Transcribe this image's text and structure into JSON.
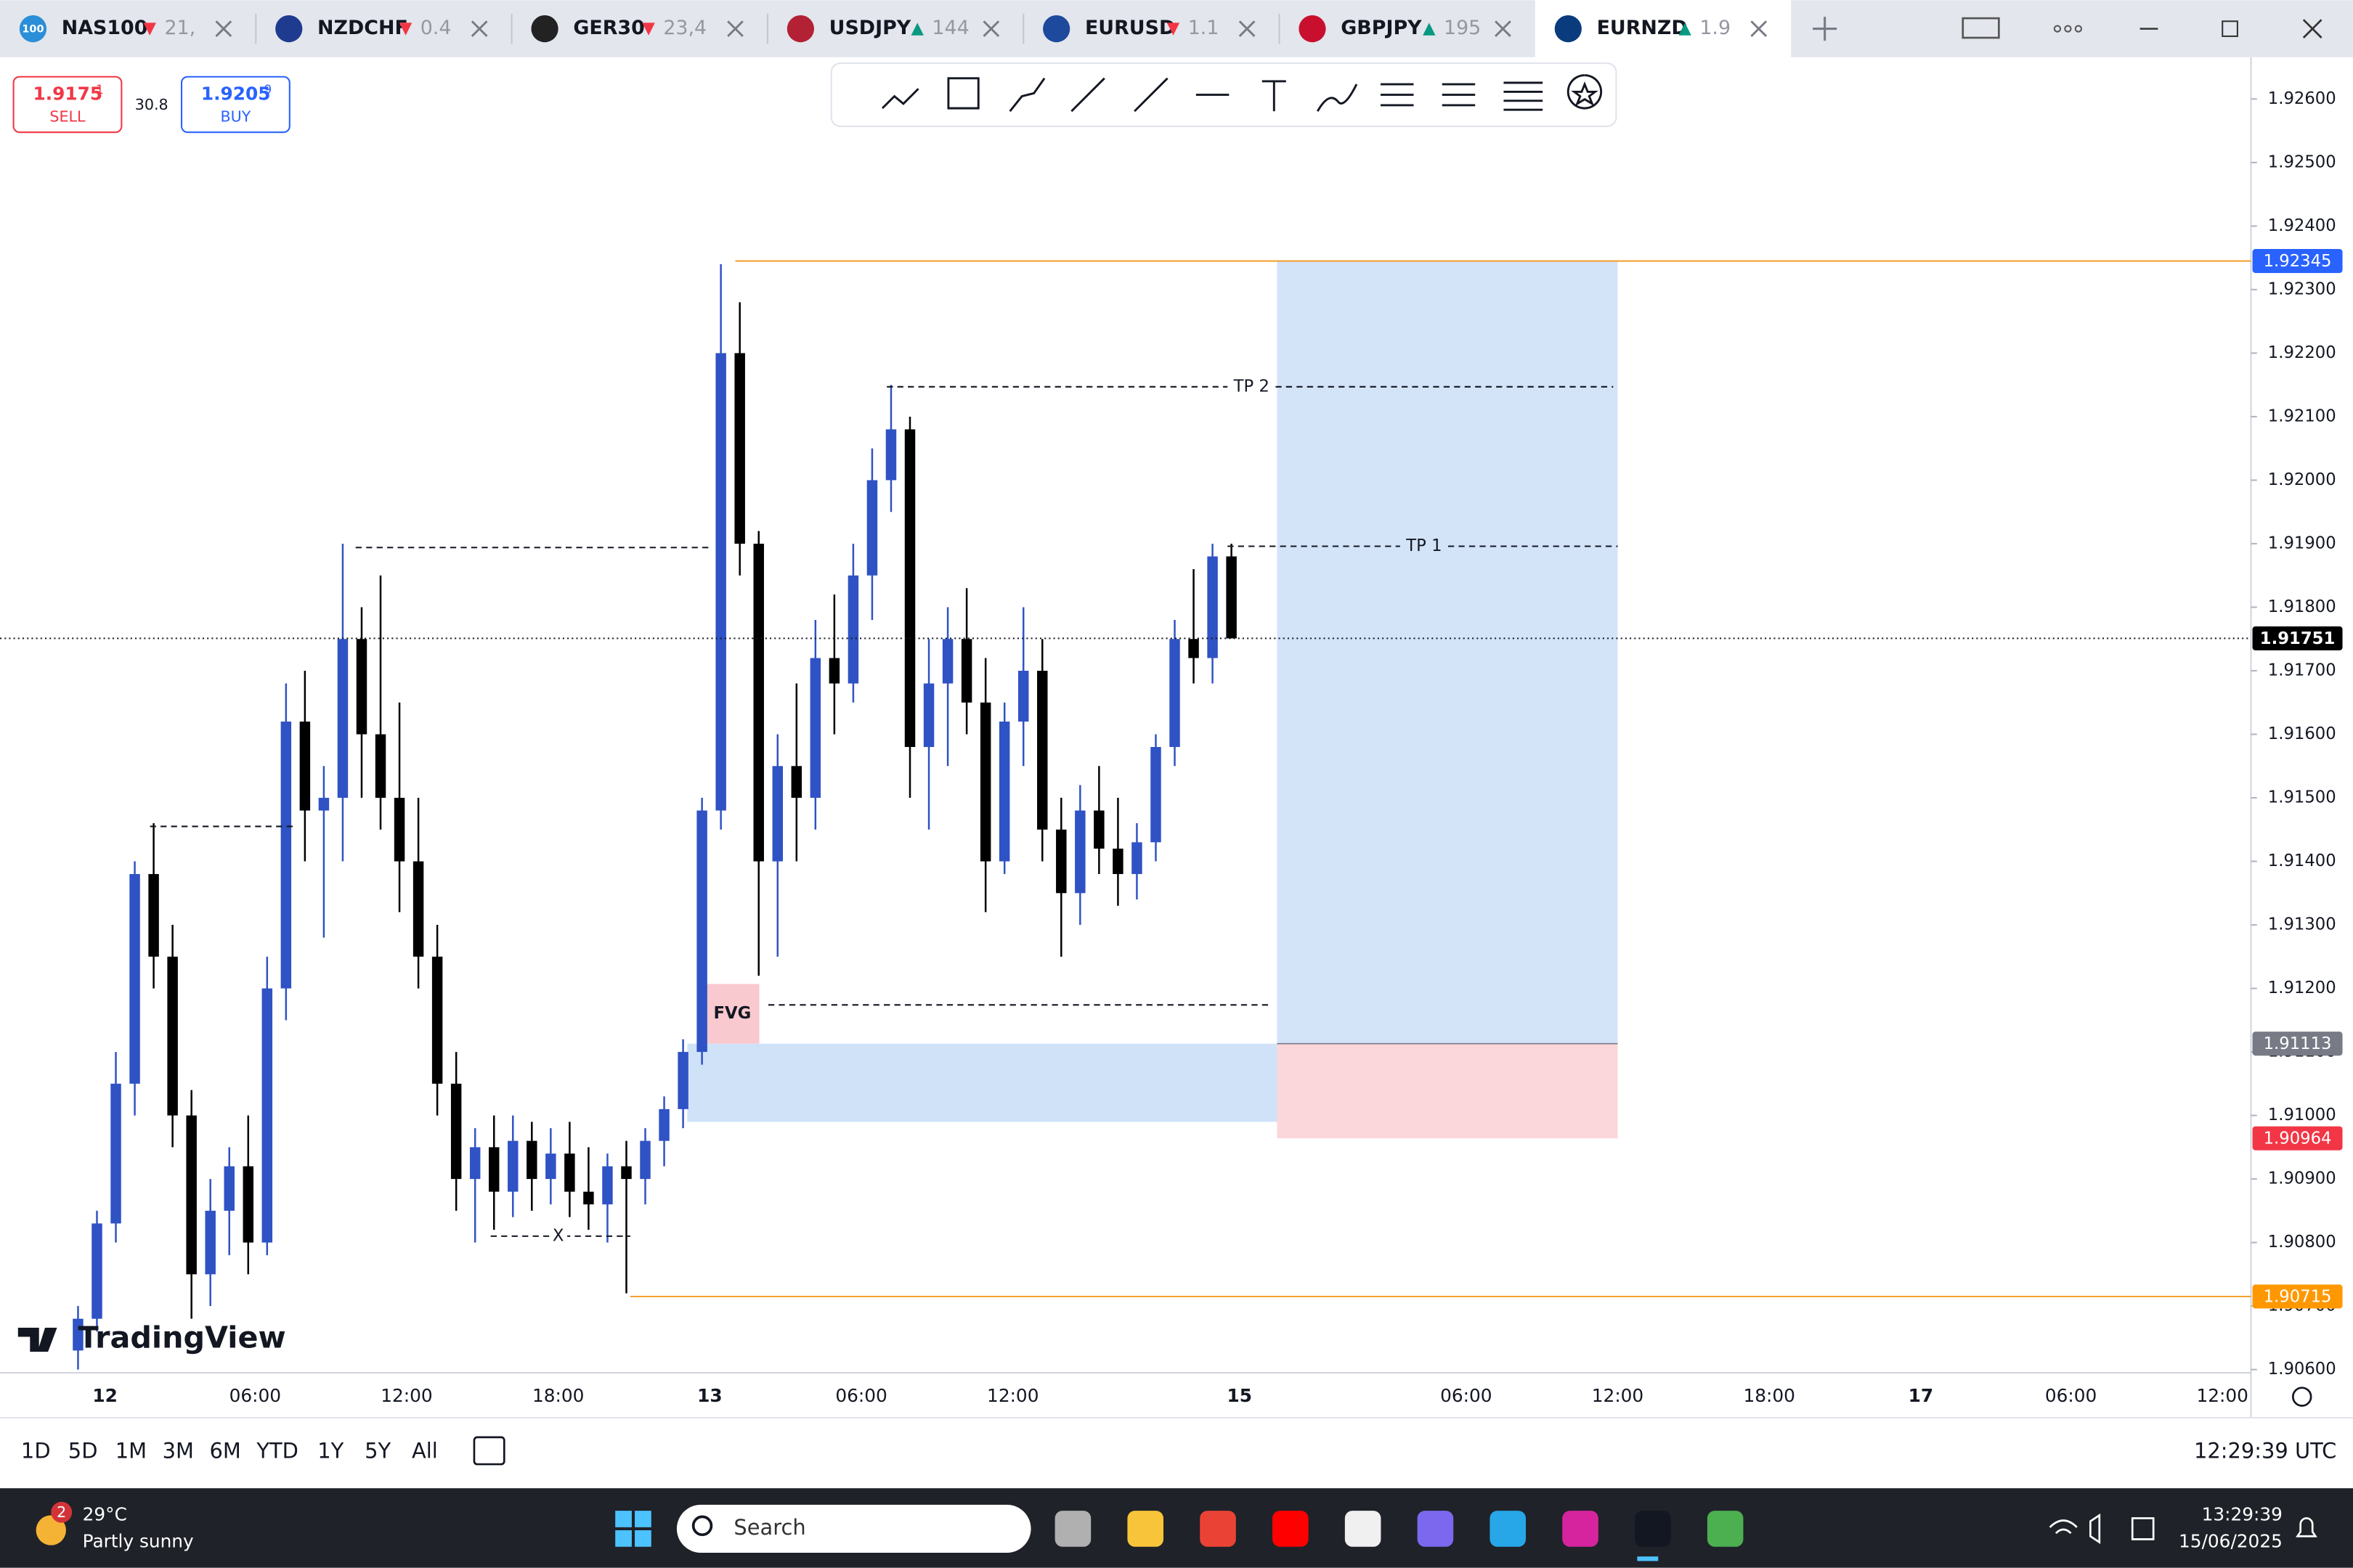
{
  "tabs": [
    {
      "symbol": "NAS100",
      "arrow": "▼",
      "price": "21,",
      "icon": "100"
    },
    {
      "symbol": "NZDCHF",
      "arrow": "▼",
      "price": "0.4"
    },
    {
      "symbol": "GER30",
      "arrow": "▼",
      "price": "23,4"
    },
    {
      "symbol": "USDJPY",
      "arrow": "▲",
      "price": "144"
    },
    {
      "symbol": "EURUSD",
      "arrow": "▼",
      "price": "1.1"
    },
    {
      "symbol": "GBPJPY",
      "arrow": "▲",
      "price": "195"
    },
    {
      "symbol": "EURNZD",
      "arrow": "▲",
      "price": "1.9"
    }
  ],
  "trade": {
    "sell_price": "1.9175",
    "sell_sup": "1",
    "sell_label": "SELL",
    "spread": "30.8",
    "buy_price": "1.9205",
    "buy_sup": "9",
    "buy_label": "BUY"
  },
  "chart": {
    "ylim": [
      1.90595,
      1.92661
    ],
    "yticks": [
      {
        "value": 1.926,
        "label": "1.92600"
      },
      {
        "value": 1.925,
        "label": "1.92500"
      },
      {
        "value": 1.924,
        "label": "1.92400"
      },
      {
        "value": 1.923,
        "label": "1.92300"
      },
      {
        "value": 1.922,
        "label": "1.92200"
      },
      {
        "value": 1.921,
        "label": "1.92100"
      },
      {
        "value": 1.92,
        "label": "1.92000"
      },
      {
        "value": 1.919,
        "label": "1.91900"
      },
      {
        "value": 1.918,
        "label": "1.91800"
      },
      {
        "value": 1.917,
        "label": "1.91700"
      },
      {
        "value": 1.916,
        "label": "1.91600"
      },
      {
        "value": 1.915,
        "label": "1.91500"
      },
      {
        "value": 1.914,
        "label": "1.91400"
      },
      {
        "value": 1.913,
        "label": "1.91300"
      },
      {
        "value": 1.912,
        "label": "1.91200"
      },
      {
        "value": 1.911,
        "label": "1.91100"
      },
      {
        "value": 1.91,
        "label": "1.91000"
      },
      {
        "value": 1.909,
        "label": "1.90900"
      },
      {
        "value": 1.908,
        "label": "1.90800"
      },
      {
        "value": 1.907,
        "label": "1.90700"
      },
      {
        "value": 1.906,
        "label": "1.90600"
      }
    ],
    "xticks": [
      "12",
      "06:00",
      "12:00",
      "18:00",
      "13",
      "06:00",
      "12:00",
      "15",
      "06:00",
      "12:00",
      "18:00",
      "17",
      "06:00",
      "12:00"
    ],
    "candles": [
      [
        1.9063,
        1.907,
        1.906,
        1.9068
      ],
      [
        1.9068,
        1.9085,
        1.9066,
        1.9083
      ],
      [
        1.9083,
        1.911,
        1.908,
        1.9105
      ],
      [
        1.9105,
        1.914,
        1.91,
        1.9138
      ],
      [
        1.9138,
        1.9146,
        1.912,
        1.9125
      ],
      [
        1.9125,
        1.913,
        1.9095,
        1.91
      ],
      [
        1.91,
        1.9104,
        1.9068,
        1.9075
      ],
      [
        1.9075,
        1.909,
        1.907,
        1.9085
      ],
      [
        1.9085,
        1.9095,
        1.9078,
        1.9092
      ],
      [
        1.9092,
        1.91,
        1.9075,
        1.908
      ],
      [
        1.908,
        1.9125,
        1.9078,
        1.912
      ],
      [
        1.912,
        1.9168,
        1.9115,
        1.9162
      ],
      [
        1.9162,
        1.917,
        1.914,
        1.9148
      ],
      [
        1.9148,
        1.9155,
        1.9128,
        1.915
      ],
      [
        1.915,
        1.919,
        1.914,
        1.9175
      ],
      [
        1.9175,
        1.918,
        1.915,
        1.916
      ],
      [
        1.916,
        1.9185,
        1.9145,
        1.915
      ],
      [
        1.915,
        1.9165,
        1.9132,
        1.914
      ],
      [
        1.914,
        1.915,
        1.912,
        1.9125
      ],
      [
        1.9125,
        1.913,
        1.91,
        1.9105
      ],
      [
        1.9105,
        1.911,
        1.9085,
        1.909
      ],
      [
        1.909,
        1.9098,
        1.908,
        1.9095
      ],
      [
        1.9095,
        1.91,
        1.9082,
        1.9088
      ],
      [
        1.9088,
        1.91,
        1.9084,
        1.9096
      ],
      [
        1.9096,
        1.9099,
        1.9085,
        1.909
      ],
      [
        1.909,
        1.9098,
        1.9086,
        1.9094
      ],
      [
        1.9094,
        1.9099,
        1.9084,
        1.9088
      ],
      [
        1.9088,
        1.9095,
        1.9082,
        1.9086
      ],
      [
        1.9086,
        1.9094,
        1.908,
        1.9092
      ],
      [
        1.9092,
        1.9096,
        1.9072,
        1.909
      ],
      [
        1.909,
        1.9098,
        1.9086,
        1.9096
      ],
      [
        1.9096,
        1.9103,
        1.9092,
        1.9101
      ],
      [
        1.9101,
        1.9112,
        1.9098,
        1.911
      ],
      [
        1.911,
        1.915,
        1.9108,
        1.9148
      ],
      [
        1.9148,
        1.9234,
        1.9145,
        1.922
      ],
      [
        1.922,
        1.9228,
        1.9185,
        1.919
      ],
      [
        1.919,
        1.9192,
        1.9122,
        1.914
      ],
      [
        1.914,
        1.916,
        1.9125,
        1.9155
      ],
      [
        1.9155,
        1.9168,
        1.914,
        1.915
      ],
      [
        1.915,
        1.9178,
        1.9145,
        1.9172
      ],
      [
        1.9172,
        1.9182,
        1.916,
        1.9168
      ],
      [
        1.9168,
        1.919,
        1.9165,
        1.9185
      ],
      [
        1.9185,
        1.9205,
        1.9178,
        1.92
      ],
      [
        1.92,
        1.9215,
        1.9195,
        1.9208
      ],
      [
        1.9208,
        1.921,
        1.915,
        1.9158
      ],
      [
        1.9158,
        1.9175,
        1.9145,
        1.9168
      ],
      [
        1.9168,
        1.918,
        1.9155,
        1.9175
      ],
      [
        1.9175,
        1.9183,
        1.916,
        1.9165
      ],
      [
        1.9165,
        1.9172,
        1.9132,
        1.914
      ],
      [
        1.914,
        1.9165,
        1.9138,
        1.9162
      ],
      [
        1.9162,
        1.918,
        1.9155,
        1.917
      ],
      [
        1.917,
        1.9175,
        1.914,
        1.9145
      ],
      [
        1.9145,
        1.915,
        1.9125,
        1.9135
      ],
      [
        1.9135,
        1.9152,
        1.913,
        1.9148
      ],
      [
        1.9148,
        1.9155,
        1.9138,
        1.9142
      ],
      [
        1.9142,
        1.915,
        1.9133,
        1.9138
      ],
      [
        1.9138,
        1.9146,
        1.9134,
        1.9143
      ],
      [
        1.9143,
        1.916,
        1.914,
        1.9158
      ],
      [
        1.9158,
        1.9178,
        1.9155,
        1.9175
      ],
      [
        1.9175,
        1.9186,
        1.9168,
        1.9172
      ],
      [
        1.9172,
        1.919,
        1.9168,
        1.9188
      ],
      [
        1.9188,
        1.919,
        1.91751,
        1.91751
      ]
    ],
    "badges": [
      {
        "value": 1.92345,
        "label": "1.92345",
        "color": "#2962ff"
      },
      {
        "value": 1.91751,
        "label": "1.91751",
        "color": "#000000"
      },
      {
        "value": 1.91113,
        "label": "1.91113",
        "color": "#787b86"
      },
      {
        "value": 1.90964,
        "label": "1.90964",
        "color": "#f23645"
      },
      {
        "value": 1.90715,
        "label": "1.90715",
        "color": "#ff9800"
      }
    ],
    "current_price": 1.91751,
    "top_line": 1.92345,
    "bottom_line": 1.90715,
    "tp2": {
      "label": "TP 2",
      "price": 1.92147
    },
    "tp1": {
      "label": "TP 1",
      "price": 1.91896
    },
    "prev_high": 1.91894,
    "prev_high2": 1.91455,
    "fvg_low_line": 1.91174,
    "x_level": {
      "label": "X",
      "price": 1.9081
    },
    "fvg": {
      "label": "FVG",
      "top": 1.91207,
      "bottom": 1.91113
    },
    "demand_zone": {
      "top": 1.91113,
      "bottom": 1.9099
    },
    "position": {
      "target": 1.92345,
      "entry": 1.91113,
      "stop": 1.90964
    },
    "logo": "TradingView"
  },
  "timeframes": [
    "1D",
    "5D",
    "1M",
    "3M",
    "6M",
    "YTD",
    "1Y",
    "5Y",
    "All"
  ],
  "clock": "12:29:39 UTC",
  "taskbar": {
    "badge": "2",
    "temp": "29°C",
    "weather": "Partly sunny",
    "search": "Search",
    "time": "13:29:39",
    "date": "15/06/2025"
  }
}
